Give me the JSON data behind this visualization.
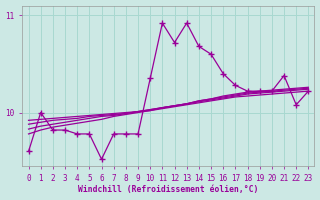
{
  "xlabel": "Windchill (Refroidissement éolien,°C)",
  "bg_color": "#cce8e4",
  "line_color": "#990099",
  "grid_color": "#a8d8d0",
  "xlim": [
    -0.5,
    23.5
  ],
  "ylim": [
    9.45,
    11.1
  ],
  "yticks": [
    10,
    11
  ],
  "xticks": [
    0,
    1,
    2,
    3,
    4,
    5,
    6,
    7,
    8,
    9,
    10,
    11,
    12,
    13,
    14,
    15,
    16,
    17,
    18,
    19,
    20,
    21,
    22,
    23
  ],
  "main_line_x": [
    0,
    1,
    2,
    3,
    4,
    5,
    6,
    7,
    8,
    9,
    10,
    11,
    12,
    13,
    14,
    15,
    16,
    17,
    18,
    19,
    20,
    21,
    22,
    23
  ],
  "main_line_y": [
    9.6,
    10.0,
    9.82,
    9.82,
    9.78,
    9.78,
    9.52,
    9.78,
    9.78,
    9.78,
    10.35,
    10.92,
    10.72,
    10.92,
    10.68,
    10.6,
    10.4,
    10.28,
    10.22,
    10.22,
    10.22,
    10.38,
    10.08,
    10.22
  ],
  "smooth_lines": [
    [
      9.92,
      9.93,
      9.94,
      9.95,
      9.96,
      9.97,
      9.98,
      9.99,
      10.0,
      10.01,
      10.02,
      10.04,
      10.06,
      10.08,
      10.1,
      10.12,
      10.14,
      10.16,
      10.17,
      10.18,
      10.19,
      10.2,
      10.21,
      10.22
    ],
    [
      9.88,
      9.9,
      9.92,
      9.93,
      9.94,
      9.96,
      9.97,
      9.98,
      9.99,
      10.01,
      10.03,
      10.05,
      10.07,
      10.09,
      10.11,
      10.13,
      10.15,
      10.17,
      10.19,
      10.2,
      10.21,
      10.22,
      10.23,
      10.24
    ],
    [
      9.83,
      9.86,
      9.88,
      9.9,
      9.92,
      9.94,
      9.96,
      9.97,
      9.99,
      10.01,
      10.03,
      10.05,
      10.07,
      10.09,
      10.12,
      10.14,
      10.16,
      10.18,
      10.2,
      10.21,
      10.22,
      10.23,
      10.24,
      10.25
    ],
    [
      9.78,
      9.82,
      9.85,
      9.87,
      9.89,
      9.91,
      9.93,
      9.96,
      9.98,
      10.0,
      10.02,
      10.05,
      10.07,
      10.09,
      10.12,
      10.14,
      10.17,
      10.19,
      10.21,
      10.22,
      10.23,
      10.24,
      10.25,
      10.26
    ]
  ]
}
